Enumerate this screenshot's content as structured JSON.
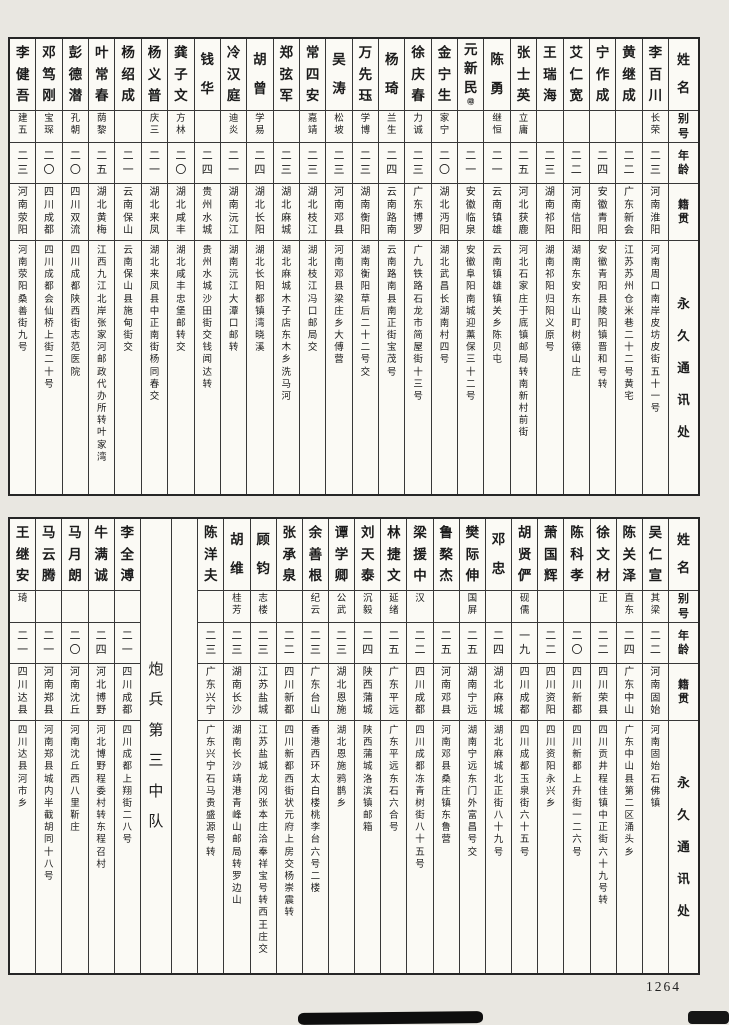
{
  "page": {
    "number": "1264"
  },
  "colors": {
    "paper": "#fbfaf5",
    "page_background": "#e9e7e1",
    "ink": "#1b1b1b",
    "border": "#383838"
  },
  "headers": {
    "name": "姓名",
    "alias": "别号",
    "age": "年龄",
    "native": "籍贯",
    "address": "永久通讯处"
  },
  "unit_label": "炮兵第三中队",
  "tables": [
    {
      "id": "upper-roster",
      "columns": [
        {
          "type": "person",
          "name": "李百川",
          "alias": "长荣",
          "age": "二三",
          "native": "河南淮阳",
          "address": "河南周口南岸皮坊皮街五十一号"
        },
        {
          "type": "person",
          "name": "黄继成",
          "alias": "",
          "age": "二二",
          "native": "广东新会",
          "address": "江苏苏州仓米巷二十二号黄宅"
        },
        {
          "type": "person",
          "name": "宁作成",
          "alias": "",
          "age": "二四",
          "native": "安徽青阳",
          "address": "安徽青阳县陵阳镇晋和号转"
        },
        {
          "type": "person",
          "name": "艾仁宽",
          "alias": "",
          "age": "二二",
          "native": "河南信阳",
          "address": "湖南东安东山町树德山庄"
        },
        {
          "type": "person",
          "name": "王瑞海",
          "alias": "",
          "age": "二三",
          "native": "湖南祁阳",
          "address": "湖南祁阳归阳义原号"
        },
        {
          "type": "person",
          "name": "张士英",
          "alias": "立庸",
          "age": "二五",
          "native": "河北获鹿",
          "address": "河北石家庄于底镇邮局转南新村前街"
        },
        {
          "type": "person",
          "name": "陈勇",
          "alias": "继恒",
          "age": "二一",
          "native": "云南镇雄",
          "address": "云南镇雄镇关乡陈贝屯"
        },
        {
          "type": "person",
          "name": "元新民",
          "mark": "㊞",
          "alias": "",
          "age": "二一",
          "native": "安徽临泉",
          "address": "安徽阜阳南城迎薰保三十二号"
        },
        {
          "type": "person",
          "name": "金宁生",
          "alias": "家宁",
          "age": "二〇",
          "native": "湖北沔阳",
          "address": "湖北武昌长湖南村四号"
        },
        {
          "type": "person",
          "name": "徐庆春",
          "alias": "力诚",
          "age": "二三",
          "native": "广东博罗",
          "address": "广九铁路石龙市简屋街十三号"
        },
        {
          "type": "person",
          "name": "杨琦",
          "alias": "兰生",
          "age": "二四",
          "native": "云南路南",
          "address": "云南路南县南正街宝茂号"
        },
        {
          "type": "person",
          "name": "万先珏",
          "alias": "学博",
          "age": "二三",
          "native": "湖南衡阳",
          "address": "湖南衡阳草后二十二号交"
        },
        {
          "type": "person",
          "name": "吴涛",
          "alias": "松坡",
          "age": "二三",
          "native": "河南邓县",
          "address": "河南邓县梁庄乡大傅营"
        },
        {
          "type": "person",
          "name": "常四安",
          "alias": "嘉靖",
          "age": "二三",
          "native": "湖北枝江",
          "address": "湖北枝江冯口邮局交"
        },
        {
          "type": "person",
          "name": "郑弦军",
          "alias": "",
          "age": "二三",
          "native": "湖北麻城",
          "address": "湖北麻城木子店东木乡洗马河"
        },
        {
          "type": "person",
          "name": "胡曾",
          "alias": "学易",
          "age": "二四",
          "native": "湖北长阳",
          "address": "湖北长阳都镇湾晓溪"
        },
        {
          "type": "person",
          "name": "冷汉庭",
          "alias": "迪炎",
          "age": "二一",
          "native": "湖南沅江",
          "address": "湖南沅江大潭口邮转"
        },
        {
          "type": "person",
          "name": "钱华",
          "alias": "",
          "age": "二四",
          "native": "贵州水城",
          "address": "贵州水城沙田街交钱闻达转"
        },
        {
          "type": "person",
          "name": "龚子文",
          "alias": "方林",
          "age": "二〇",
          "native": "湖北咸丰",
          "address": "湖北咸丰忠堡邮转交"
        },
        {
          "type": "person",
          "name": "杨义普",
          "alias": "庆三",
          "age": "二一",
          "native": "湖北来凤",
          "address": "湖北来凤县中正南街杨同春交"
        },
        {
          "type": "person",
          "name": "杨绍成",
          "alias": "",
          "age": "二一",
          "native": "云南保山",
          "address": "云南保山县施甸街交"
        },
        {
          "type": "person",
          "name": "叶常春",
          "alias": "荫黎",
          "age": "二五",
          "native": "湖北黄梅",
          "address": "江西九江北岸张家河邮政代办所转叶家湾"
        },
        {
          "type": "person",
          "name": "彭德潜",
          "alias": "孔朝",
          "age": "二〇",
          "native": "四川双流",
          "address": "四川成都陕西街志范医院"
        },
        {
          "type": "person",
          "name": "邓笃刚",
          "alias": "宝琛",
          "age": "二〇",
          "native": "四川成都",
          "address": "四川成都会仙桥上街二十号"
        },
        {
          "type": "person",
          "name": "李健吾",
          "alias": "建五",
          "age": "二三",
          "native": "河南荥阳",
          "address": "河南荥阳桑善街九号"
        }
      ]
    },
    {
      "id": "lower-roster",
      "columns": [
        {
          "type": "person",
          "name": "吴仁宣",
          "alias": "其梁",
          "age": "二二",
          "native": "河南固始",
          "address": "河南固始石佛镇"
        },
        {
          "type": "person",
          "name": "陈关泽",
          "alias": "直东",
          "age": "二四",
          "native": "广东中山",
          "address": "广东中山县第二区涌头乡"
        },
        {
          "type": "person",
          "name": "徐文材",
          "alias": "正",
          "age": "二二",
          "native": "四川荣县",
          "address": "四川贡井程佳镇中正街六十九号转"
        },
        {
          "type": "person",
          "name": "陈科孝",
          "alias": "",
          "age": "二〇",
          "native": "四川新都",
          "address": "四川新都上升街一二六号"
        },
        {
          "type": "person",
          "name": "萧国辉",
          "alias": "",
          "age": "二二",
          "native": "四川资阳",
          "address": "四川资阳永兴乡"
        },
        {
          "type": "person",
          "name": "胡贤俨",
          "alias": "砚儒",
          "age": "一九",
          "native": "四川成都",
          "address": "四川成都玉泉街六十五号"
        },
        {
          "type": "person",
          "name": "邓忠",
          "alias": "",
          "age": "二四",
          "native": "湖北麻城",
          "address": "湖北麻城北正街八十九号"
        },
        {
          "type": "person",
          "name": "樊际伸",
          "alias": "国屏",
          "age": "二五",
          "native": "湖南宁远",
          "address": "湖南宁远东门外富昌号交"
        },
        {
          "type": "person",
          "name": "鲁楘杰",
          "alias": "",
          "age": "二五",
          "native": "河南邓县",
          "address": "河南邓县桑庄镇东鲁营"
        },
        {
          "type": "person",
          "name": "梁援中",
          "alias": "汉",
          "age": "二二",
          "native": "四川成都",
          "address": "四川成都冻青树街八十五号"
        },
        {
          "type": "person",
          "name": "林捷文",
          "alias": "延绪",
          "age": "二五",
          "native": "广东平远",
          "address": "广东平远东石六合号"
        },
        {
          "type": "person",
          "name": "刘天泰",
          "alias": "沉毅",
          "age": "二四",
          "native": "陕西蒲城",
          "address": "陕西蒲城洛滨镇邮箱"
        },
        {
          "type": "person",
          "name": "谭学卿",
          "alias": "公武",
          "age": "二三",
          "native": "湖北恩施",
          "address": "湖北恩施鸦鹊乡"
        },
        {
          "type": "person",
          "name": "余善根",
          "alias": "纪云",
          "age": "二三",
          "native": "广东台山",
          "address": "香港西环太白楼桃李台六号二楼"
        },
        {
          "type": "person",
          "name": "张承泉",
          "alias": "",
          "age": "二二",
          "native": "四川新都",
          "address": "四川新都西街状元府上房交杨崇震转"
        },
        {
          "type": "person",
          "name": "顾钧",
          "alias": "志楼",
          "age": "二三",
          "native": "江苏盐城",
          "address": "江苏盐城龙冈张本庄洽奉祥宝号转西王庄交"
        },
        {
          "type": "person",
          "name": "胡维",
          "alias": "桂芳",
          "age": "二三",
          "native": "湖南长沙",
          "address": "湖南长沙靖港青峰山邮局转罗边山"
        },
        {
          "type": "person",
          "name": "陈洋夫",
          "alias": "",
          "age": "二三",
          "native": "广东兴宁",
          "address": "广东兴宁石马贵盛源号转"
        },
        {
          "type": "blank"
        },
        {
          "type": "unit"
        },
        {
          "type": "person",
          "name": "李全溥",
          "alias": "",
          "age": "二一",
          "native": "四川成都",
          "address": "四川成都上翔街二八号"
        },
        {
          "type": "person",
          "name": "牛满诚",
          "alias": "",
          "age": "二四",
          "native": "河北博野",
          "address": "河北博野程委村转东程召村"
        },
        {
          "type": "person",
          "name": "马月朗",
          "alias": "",
          "age": "二〇",
          "native": "河南沈丘",
          "address": "河南沈丘西八里靳庄"
        },
        {
          "type": "person",
          "name": "马云腾",
          "alias": "",
          "age": "二一",
          "native": "河南郑县",
          "address": "河南郑县城内半截胡同十八号"
        },
        {
          "type": "person",
          "name": "王继安",
          "alias": "琦",
          "age": "二一",
          "native": "四川达县",
          "address": "四川达县河市乡"
        }
      ]
    }
  ]
}
